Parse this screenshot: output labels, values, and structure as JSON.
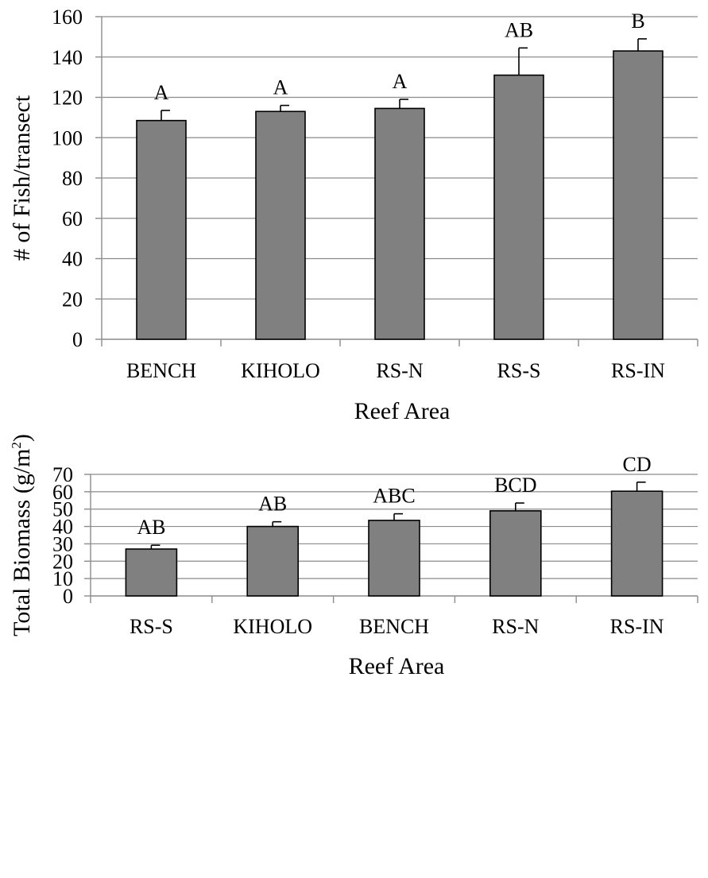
{
  "chart_data": [
    {
      "type": "bar",
      "categories": [
        "BENCH",
        "KIHOLO",
        "RS-N",
        "RS-S",
        "RS-IN"
      ],
      "values": [
        108.5,
        113,
        114.5,
        131,
        143
      ],
      "error": [
        5,
        3,
        4.5,
        13.5,
        6
      ],
      "group_letters": [
        "A",
        "A",
        "A",
        "AB",
        "B"
      ],
      "ylabel": "# of Fish/transect",
      "xlabel": "Reef Area",
      "ylim": [
        0,
        160
      ],
      "yticks": [
        "0",
        "20",
        "40",
        "60",
        "80",
        "100",
        "120",
        "140",
        "160"
      ],
      "grid": true,
      "bar_color": "#808080"
    },
    {
      "type": "bar",
      "categories": [
        "RS-S",
        "KIHOLO",
        "BENCH",
        "RS-N",
        "RS-IN"
      ],
      "values": [
        27,
        40,
        43.5,
        49,
        60.3
      ],
      "error": [
        2.2,
        2.7,
        3.8,
        4.5,
        5.2
      ],
      "group_letters": [
        "AB",
        "AB",
        "ABC",
        "BCD",
        "CD"
      ],
      "ylabel": "Total Biomass (g/m2)",
      "ylabel_parts": {
        "main": "Total Biomass (g/m",
        "sup": "2",
        "end": ")"
      },
      "xlabel": "Reef Area",
      "ylim": [
        0,
        70
      ],
      "yticks": [
        "0",
        "10",
        "20",
        "30",
        "40",
        "50",
        "60",
        "70"
      ],
      "grid": true,
      "bar_color": "#808080"
    }
  ]
}
